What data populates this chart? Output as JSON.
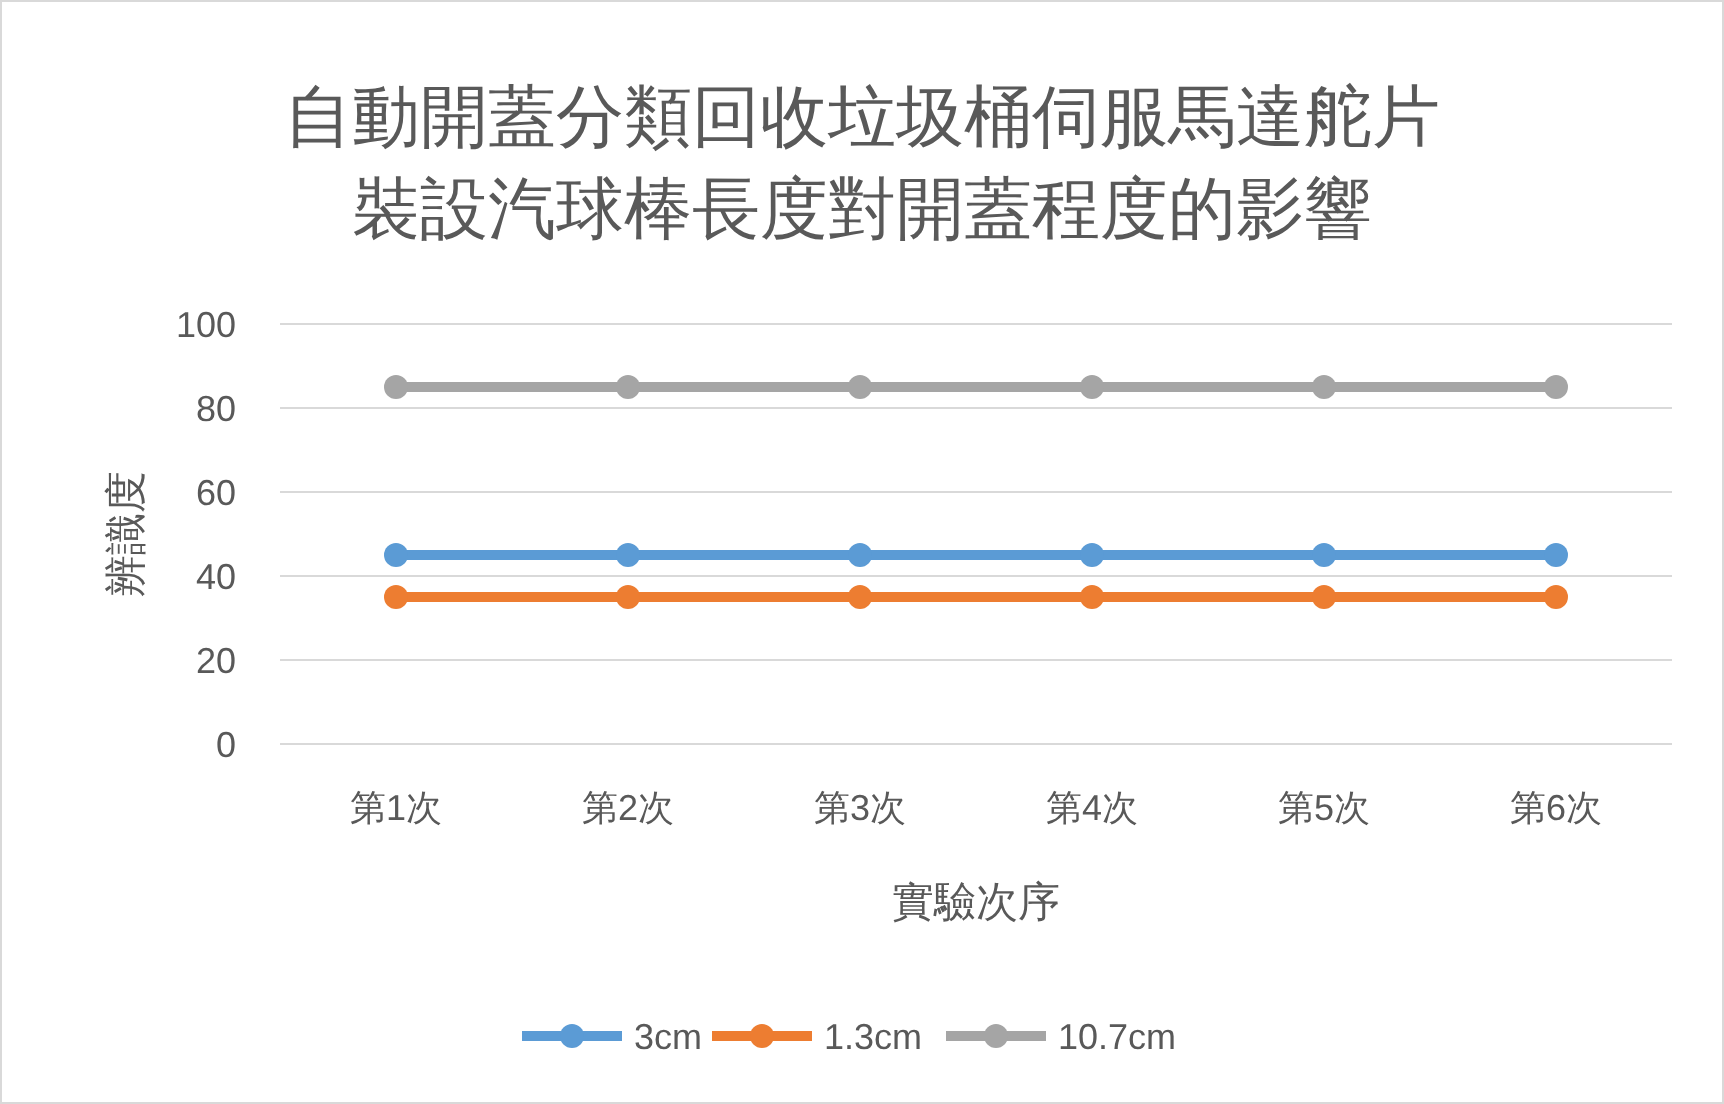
{
  "chart_data": {
    "type": "line",
    "title": "自動開蓋分類回收垃圾桶伺服馬達舵片裝設汽球棒長度對開蓋程度的影響",
    "xlabel": "實驗次序",
    "ylabel": "辨識度",
    "categories": [
      "第1次",
      "第2次",
      "第3次",
      "第4次",
      "第5次",
      "第6次"
    ],
    "series": [
      {
        "name": "3cm",
        "color": "#5b9bd5",
        "values": [
          45,
          45,
          45,
          45,
          45,
          45
        ]
      },
      {
        "name": "1.3cm",
        "color": "#ed7d31",
        "values": [
          35,
          35,
          35,
          35,
          35,
          35
        ]
      },
      {
        "name": "10.7cm",
        "color": "#a5a5a5",
        "values": [
          85,
          85,
          85,
          85,
          85,
          85
        ]
      }
    ],
    "ylim": [
      0,
      100
    ],
    "yticks": [
      0,
      20,
      40,
      60,
      80,
      100
    ],
    "grid": "y",
    "legend": "bottom",
    "marker": "circle",
    "line_style": "solid"
  }
}
